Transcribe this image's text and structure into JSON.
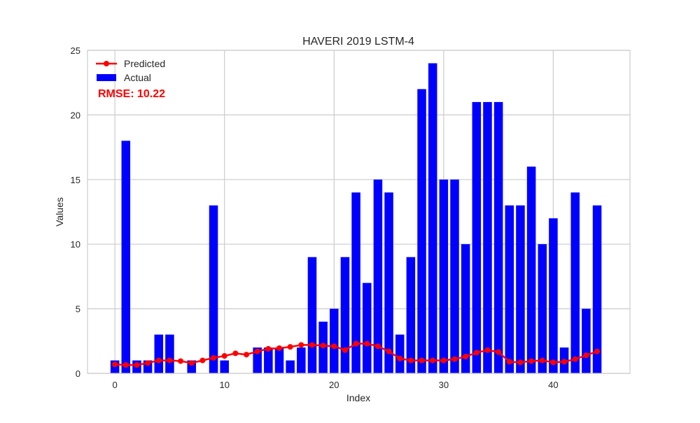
{
  "chart_data": {
    "type": "bar",
    "title": "HAVERI 2019 LSTM-4",
    "xlabel": "Index",
    "ylabel": "Values",
    "xlim": [
      -2.5,
      47.0
    ],
    "ylim": [
      0,
      25
    ],
    "xticks": [
      0,
      10,
      20,
      30,
      40
    ],
    "yticks": [
      0,
      5,
      10,
      15,
      20,
      25
    ],
    "grid": true,
    "legend_position": "top-left",
    "annotation": "RMSE: 10.22",
    "x": [
      0,
      1,
      2,
      3,
      4,
      5,
      6,
      7,
      8,
      9,
      10,
      11,
      12,
      13,
      14,
      15,
      16,
      17,
      18,
      19,
      20,
      21,
      22,
      23,
      24,
      25,
      26,
      27,
      28,
      29,
      30,
      31,
      32,
      33,
      34,
      35,
      36,
      37,
      38,
      39,
      40,
      41,
      42,
      43,
      44
    ],
    "series": [
      {
        "name": "Actual",
        "kind": "bar",
        "color": "#0000ff",
        "values": [
          1,
          18,
          1,
          1,
          3,
          3,
          0,
          1,
          0,
          13,
          1,
          0,
          0,
          2,
          2,
          2,
          1,
          2,
          9,
          4,
          5,
          9,
          14,
          7,
          15,
          14,
          3,
          9,
          22,
          24,
          15,
          15,
          10,
          21,
          21,
          21,
          13,
          13,
          16,
          10,
          12,
          2,
          14,
          5,
          13
        ]
      },
      {
        "name": "Predicted",
        "kind": "line",
        "color": "#ff0000",
        "values": [
          0.7,
          0.65,
          0.65,
          0.8,
          1.0,
          1.0,
          0.95,
          0.8,
          1.0,
          1.2,
          1.35,
          1.55,
          1.45,
          1.7,
          1.9,
          1.95,
          2.05,
          2.2,
          2.2,
          2.15,
          2.1,
          1.8,
          2.3,
          2.3,
          2.1,
          1.7,
          1.15,
          1.0,
          1.0,
          1.0,
          1.0,
          1.1,
          1.3,
          1.6,
          1.8,
          1.65,
          0.9,
          0.85,
          0.95,
          1.0,
          0.85,
          0.9,
          1.1,
          1.4,
          1.7
        ]
      }
    ]
  }
}
